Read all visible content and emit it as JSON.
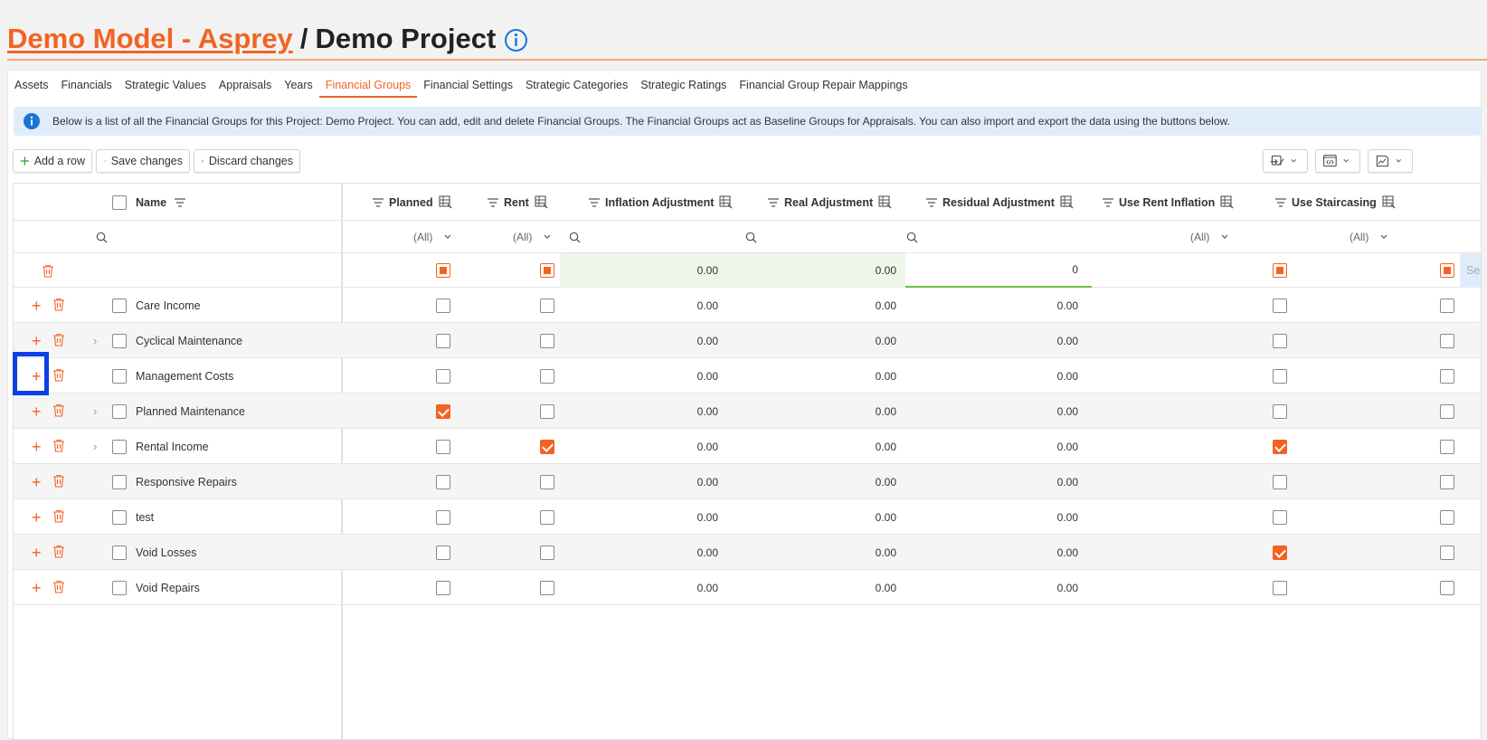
{
  "title": {
    "model_link": "Demo Model - Asprey",
    "separator": "/",
    "project": "Demo Project",
    "info_icon": "info-circle-icon"
  },
  "tabs": [
    {
      "label": "Assets",
      "active": false
    },
    {
      "label": "Financials",
      "active": false
    },
    {
      "label": "Strategic Values",
      "active": false
    },
    {
      "label": "Appraisals",
      "active": false
    },
    {
      "label": "Years",
      "active": false
    },
    {
      "label": "Financial Groups",
      "active": true
    },
    {
      "label": "Financial Settings",
      "active": false
    },
    {
      "label": "Strategic Categories",
      "active": false
    },
    {
      "label": "Strategic Ratings",
      "active": false
    },
    {
      "label": "Financial Group Repair Mappings",
      "active": false
    }
  ],
  "banner": {
    "text": "Below is a list of all the Financial Groups for this Project: Demo Project. You can add, edit and delete Financial Groups. The Financial Groups act as Baseline Groups for Appraisals. You can also import and export the data using the buttons below."
  },
  "toolbar": {
    "add_row": "Add a row",
    "save_changes": "Save changes",
    "discard_changes": "Discard changes",
    "right_buttons": [
      "import-icon",
      "export-code-icon",
      "chart-icon"
    ]
  },
  "grid": {
    "columns": {
      "name": "Name",
      "planned": "Planned",
      "rent": "Rent",
      "inflation_adjustment": "Inflation Adjustment",
      "real_adjustment": "Real Adjustment",
      "residual_adjustment": "Residual Adjustment",
      "use_rent_inflation": "Use Rent Inflation",
      "use_staircasing": "Use Staircasing"
    },
    "filter_all": "(All)",
    "new_row": {
      "inflation_adjustment": "0.00",
      "real_adjustment": "0.00",
      "residual_adjustment": "0",
      "cutoff_text": "Se"
    },
    "rows": [
      {
        "name": "Care Income",
        "expandable": false,
        "planned": false,
        "rent": false,
        "inflation": "0.00",
        "real": "0.00",
        "residual": "0.00",
        "rent_inflation": false,
        "staircasing": false
      },
      {
        "name": "Cyclical Maintenance",
        "expandable": true,
        "planned": false,
        "rent": false,
        "inflation": "0.00",
        "real": "0.00",
        "residual": "0.00",
        "rent_inflation": false,
        "staircasing": false
      },
      {
        "name": "Management Costs",
        "expandable": false,
        "planned": false,
        "rent": false,
        "inflation": "0.00",
        "real": "0.00",
        "residual": "0.00",
        "rent_inflation": false,
        "staircasing": false
      },
      {
        "name": "Planned Maintenance",
        "expandable": true,
        "planned": true,
        "rent": false,
        "inflation": "0.00",
        "real": "0.00",
        "residual": "0.00",
        "rent_inflation": false,
        "staircasing": false
      },
      {
        "name": "Rental Income",
        "expandable": true,
        "planned": false,
        "rent": true,
        "inflation": "0.00",
        "real": "0.00",
        "residual": "0.00",
        "rent_inflation": true,
        "staircasing": false
      },
      {
        "name": "Responsive Repairs",
        "expandable": false,
        "planned": false,
        "rent": false,
        "inflation": "0.00",
        "real": "0.00",
        "residual": "0.00",
        "rent_inflation": false,
        "staircasing": false
      },
      {
        "name": "test",
        "expandable": false,
        "planned": false,
        "rent": false,
        "inflation": "0.00",
        "real": "0.00",
        "residual": "0.00",
        "rent_inflation": false,
        "staircasing": false
      },
      {
        "name": "Void Losses",
        "expandable": false,
        "planned": false,
        "rent": false,
        "inflation": "0.00",
        "real": "0.00",
        "residual": "0.00",
        "rent_inflation": true,
        "staircasing": false
      },
      {
        "name": "Void Repairs",
        "expandable": false,
        "planned": false,
        "rent": false,
        "inflation": "0.00",
        "real": "0.00",
        "residual": "0.00",
        "rent_inflation": false,
        "staircasing": false
      }
    ]
  },
  "colors": {
    "accent": "#f26323",
    "banner_bg": "#e1ecfb",
    "info_blue": "#1a73d9",
    "selection_box": "#0e3fe6",
    "green": "#2e9e3e",
    "red": "#e53935"
  }
}
